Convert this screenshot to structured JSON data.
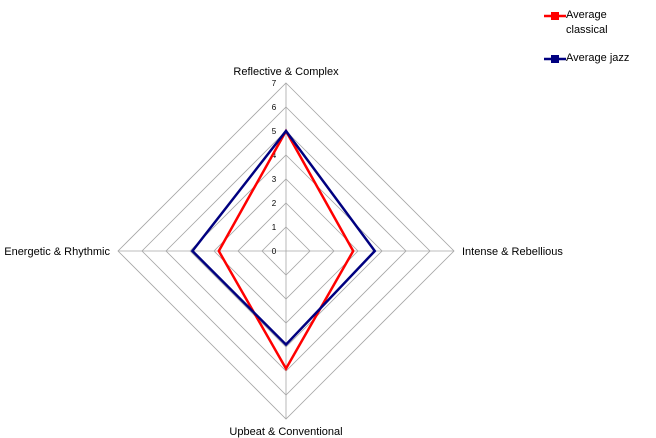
{
  "chart_data": {
    "type": "radar",
    "categories": [
      "Reflective & Complex",
      "Intense & Rebellious",
      "Upbeat & Conventional",
      "Energetic & Rhythmic"
    ],
    "series": [
      {
        "name": "Average classical",
        "color": "#ff0000",
        "values": [
          5,
          2.8,
          4.9,
          2.8
        ]
      },
      {
        "name": "Average jazz",
        "color": "#000080",
        "values": [
          5,
          3.7,
          3.9,
          3.9
        ]
      }
    ],
    "ylim": [
      0,
      7
    ],
    "yticks": [
      0,
      1,
      2,
      3,
      4,
      5,
      6,
      7
    ],
    "grid": true,
    "legend": "top-right"
  }
}
